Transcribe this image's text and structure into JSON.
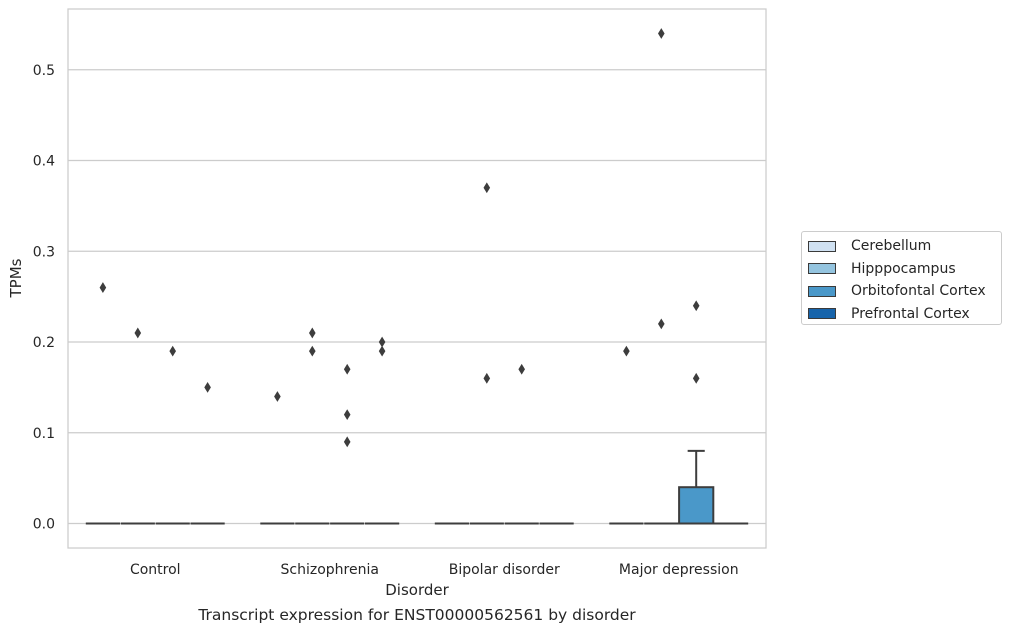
{
  "chart_data": {
    "type": "box",
    "xlabel": "Disorder",
    "ylabel": "TPMs",
    "ylim": [
      -0.027,
      0.567
    ],
    "yticks": [
      "0.0",
      "0.1",
      "0.2",
      "0.3",
      "0.4",
      "0.5"
    ],
    "ytick_values": [
      0.0,
      0.1,
      0.2,
      0.3,
      0.4,
      0.5
    ],
    "categories": [
      "Control",
      "Schizophrenia",
      "Bipolar disorder",
      "Major depression"
    ],
    "grid": true,
    "legend_position": "right",
    "series": [
      {
        "name": "Cerebellum",
        "color": "#d0e1f2"
      },
      {
        "name": "Hipppocampus",
        "color": "#94c4df"
      },
      {
        "name": "Orbitofontal Cortex",
        "color": "#4a98c9"
      },
      {
        "name": "Prefrontal Cortex",
        "color": "#1764ab"
      }
    ],
    "boxes": [
      {
        "category": "Control",
        "series": "Cerebellum",
        "q1": 0,
        "median": 0,
        "q3": 0,
        "whisker_low": 0,
        "whisker_high": 0,
        "outliers": [
          0.26
        ]
      },
      {
        "category": "Control",
        "series": "Hipppocampus",
        "q1": 0,
        "median": 0,
        "q3": 0,
        "whisker_low": 0,
        "whisker_high": 0,
        "outliers": [
          0.21
        ]
      },
      {
        "category": "Control",
        "series": "Orbitofontal Cortex",
        "q1": 0,
        "median": 0,
        "q3": 0,
        "whisker_low": 0,
        "whisker_high": 0,
        "outliers": [
          0.19
        ]
      },
      {
        "category": "Control",
        "series": "Prefrontal Cortex",
        "q1": 0,
        "median": 0,
        "q3": 0,
        "whisker_low": 0,
        "whisker_high": 0,
        "outliers": [
          0.15
        ]
      },
      {
        "category": "Schizophrenia",
        "series": "Cerebellum",
        "q1": 0,
        "median": 0,
        "q3": 0,
        "whisker_low": 0,
        "whisker_high": 0,
        "outliers": [
          0.14
        ]
      },
      {
        "category": "Schizophrenia",
        "series": "Hipppocampus",
        "q1": 0,
        "median": 0,
        "q3": 0,
        "whisker_low": 0,
        "whisker_high": 0,
        "outliers": [
          0.21,
          0.19
        ]
      },
      {
        "category": "Schizophrenia",
        "series": "Orbitofontal Cortex",
        "q1": 0,
        "median": 0,
        "q3": 0,
        "whisker_low": 0,
        "whisker_high": 0,
        "outliers": [
          0.17,
          0.12,
          0.09
        ]
      },
      {
        "category": "Schizophrenia",
        "series": "Prefrontal Cortex",
        "q1": 0,
        "median": 0,
        "q3": 0,
        "whisker_low": 0,
        "whisker_high": 0,
        "outliers": [
          0.2,
          0.19
        ]
      },
      {
        "category": "Bipolar disorder",
        "series": "Cerebellum",
        "q1": 0,
        "median": 0,
        "q3": 0,
        "whisker_low": 0,
        "whisker_high": 0,
        "outliers": []
      },
      {
        "category": "Bipolar disorder",
        "series": "Hipppocampus",
        "q1": 0,
        "median": 0,
        "q3": 0,
        "whisker_low": 0,
        "whisker_high": 0,
        "outliers": [
          0.37,
          0.16
        ]
      },
      {
        "category": "Bipolar disorder",
        "series": "Orbitofontal Cortex",
        "q1": 0,
        "median": 0,
        "q3": 0,
        "whisker_low": 0,
        "whisker_high": 0,
        "outliers": [
          0.17
        ]
      },
      {
        "category": "Bipolar disorder",
        "series": "Prefrontal Cortex",
        "q1": 0,
        "median": 0,
        "q3": 0,
        "whisker_low": 0,
        "whisker_high": 0,
        "outliers": []
      },
      {
        "category": "Major depression",
        "series": "Cerebellum",
        "q1": 0,
        "median": 0,
        "q3": 0,
        "whisker_low": 0,
        "whisker_high": 0,
        "outliers": [
          0.19
        ]
      },
      {
        "category": "Major depression",
        "series": "Hipppocampus",
        "q1": 0,
        "median": 0,
        "q3": 0,
        "whisker_low": 0,
        "whisker_high": 0,
        "outliers": [
          0.54,
          0.22
        ]
      },
      {
        "category": "Major depression",
        "series": "Orbitofontal Cortex",
        "q1": 0,
        "median": 0,
        "q3": 0.04,
        "whisker_low": 0,
        "whisker_high": 0.08,
        "outliers": [
          0.24,
          0.16
        ]
      },
      {
        "category": "Major depression",
        "series": "Prefrontal Cortex",
        "q1": 0,
        "median": 0,
        "q3": 0,
        "whisker_low": 0,
        "whisker_high": 0,
        "outliers": []
      }
    ]
  },
  "caption": "Transcript expression for ENST00000562561 by disorder"
}
